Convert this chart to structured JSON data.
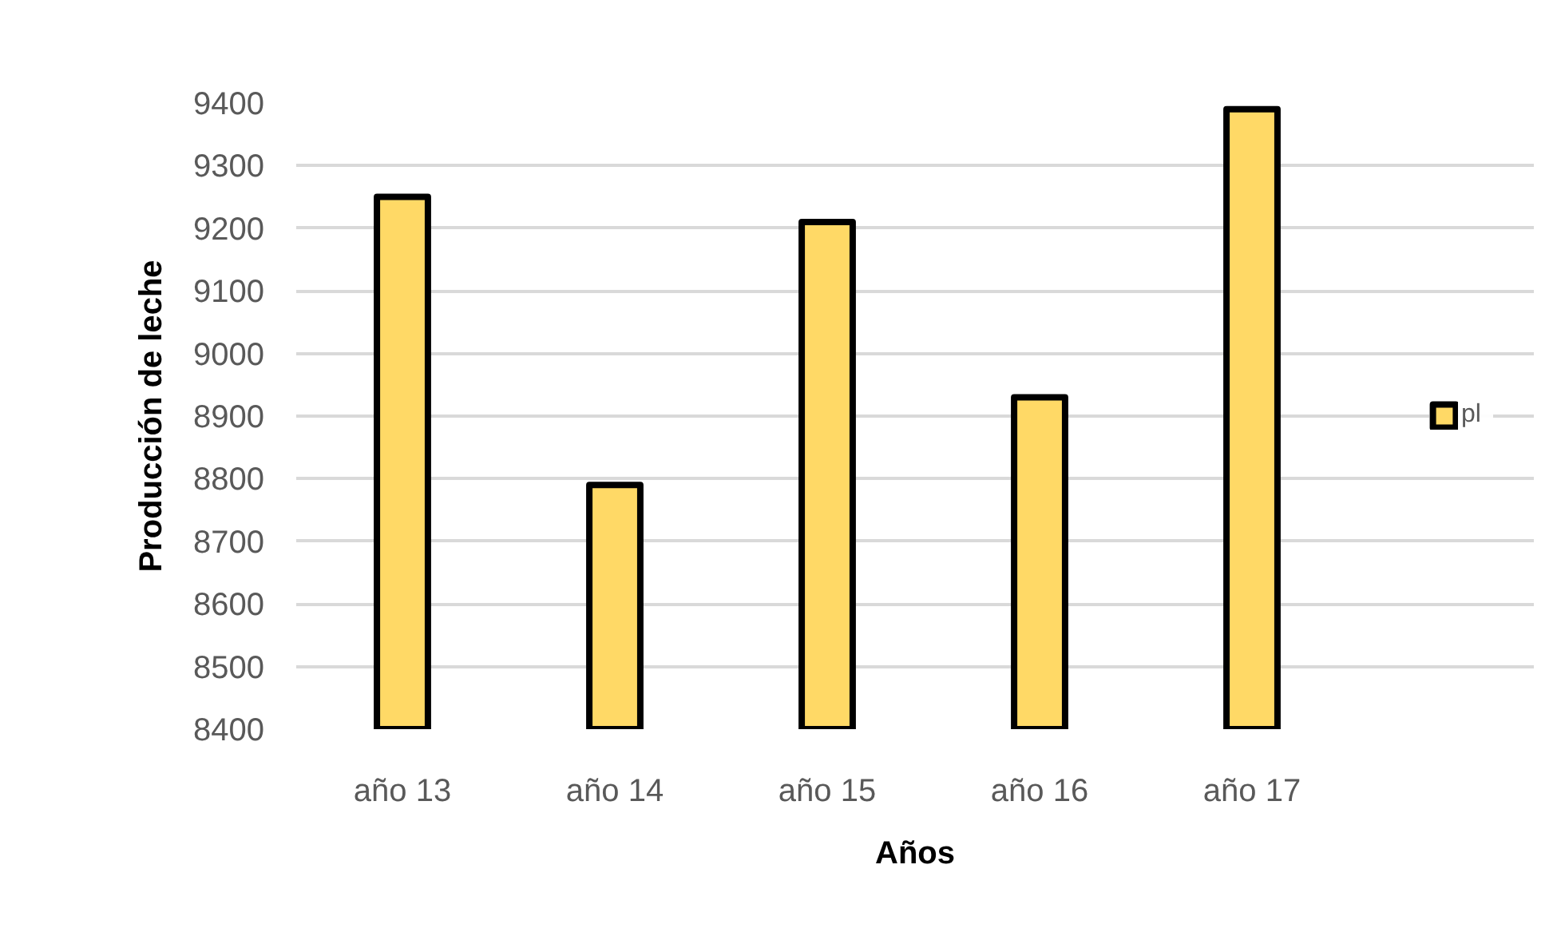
{
  "chart_data": {
    "type": "bar",
    "xlabel": "Años",
    "ylabel": "Producción de leche",
    "categories": [
      "año 13",
      "año 14",
      "año 15",
      "año 16",
      "año 17"
    ],
    "series": [
      {
        "name": "pl",
        "color": "#ffd966",
        "values": [
          9250,
          8790,
          9210,
          8930,
          9390
        ]
      }
    ],
    "ylim": [
      8400,
      9400
    ],
    "yticks": [
      8400,
      8500,
      8600,
      8700,
      8800,
      8900,
      9000,
      9100,
      9200,
      9300,
      9400
    ],
    "grid": "y",
    "legend": "right"
  }
}
